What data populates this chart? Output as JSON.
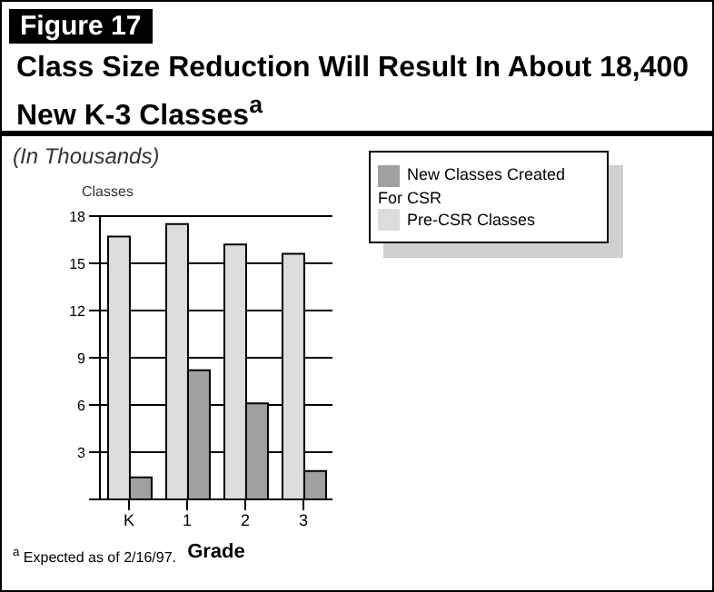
{
  "chart_data": {
    "type": "bar",
    "title": "Class Size Reduction Will Result In About 18,400 New K-3 Classes$^{a}$",
    "subtitle": "(In Thousands)",
    "xlabel": "Grade",
    "ylabel": "Classes",
    "annotations": [
      "Figure 17",
      "$^{a}$ Expected as of 2/16/97."
    ],
    "categories": [
      "K",
      "1",
      "2",
      "3"
    ],
    "series": [
      {
        "name": "Pre-CSR Classes",
        "color": "#dcdcdc",
        "values": [
          16.7,
          17.5,
          16.2,
          15.6
        ]
      },
      {
        "name": "New Classes Created For CSR",
        "color": "#a0a0a0",
        "values": [
          1.4,
          8.2,
          6.1,
          1.8
        ]
      }
    ],
    "ylim": [
      0,
      18
    ],
    "yticks": [
      {
        "value": 0,
        "label": null
      },
      3,
      6,
      9,
      12,
      15,
      18
    ],
    "grid": "y",
    "legend": "top right"
  }
}
